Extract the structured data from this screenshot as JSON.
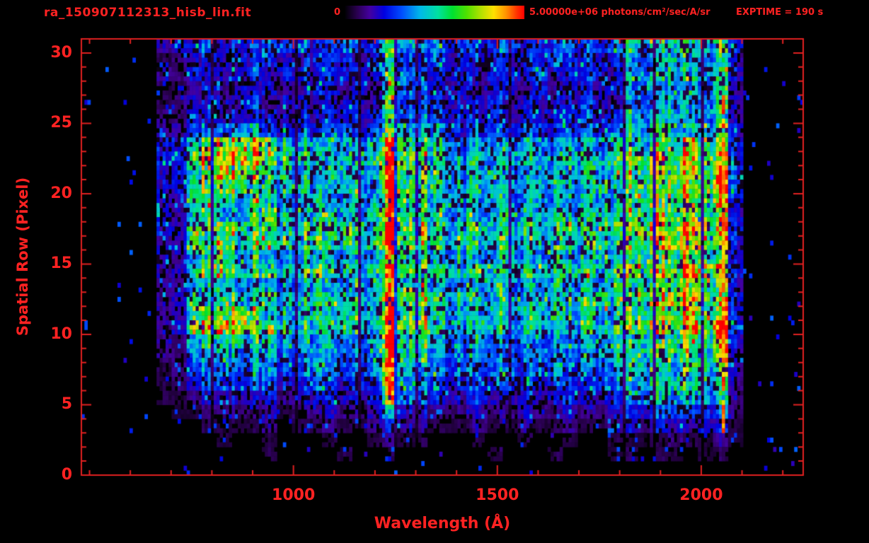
{
  "header": {
    "title": "ra_150907112313_hisb_lin.fit",
    "exptime": "EXPTIME = 190 s",
    "colorbar": {
      "min_label": "0",
      "max_label": "5.00000e+06 photons/cm²/sec/A/sr",
      "colormap": "rainbow"
    }
  },
  "colors": {
    "accent": "#ff2222",
    "axis": "#e02020",
    "background": "#000000"
  },
  "chart_data": {
    "type": "heatmap",
    "title": "ra_150907112313_hisb_lin.fit",
    "xlabel": "Wavelength (Å)",
    "ylabel": "Spatial Row (Pixel)",
    "x_range_angstrom": [
      480,
      2250
    ],
    "x_ticks": [
      1000,
      1500,
      2000
    ],
    "x_minor_tick_step": 100,
    "y_range_rows": [
      0,
      31
    ],
    "y_ticks": [
      0,
      5,
      10,
      15,
      20,
      25,
      30
    ],
    "y_minor_tick_step": 1,
    "value_min": 0,
    "value_max": 5000000,
    "value_units": "photons/cm²/sec/A/sr",
    "exposure_time_s": 190,
    "features": {
      "lyman_alpha_column_angstrom": 1216,
      "secondary_emission_column_angstrom": 1295,
      "faint_emission_column_angstrom": 1800,
      "detector_edge_line_angstrom": 2054,
      "data_extent_angstrom": [
        665,
        2100
      ]
    },
    "grid": {
      "cols": 48,
      "rows": 31,
      "x_start": 480,
      "x_step_angstrom": 36.875,
      "encoding": "one hex char (0-f) per cell = linear intensity 0..value_max; rows listed from spatial row 30 (top) down to row 0 (bottom)",
      "rows_top_to_bottom": [
        "000002345344544345448555454453445445777867840000",
        "000001234344433444347445344434454434667767730000",
        "000002244345344344438554443444534443777877840000",
        "000001123233322332327443232332423323555655720000",
        "000001233334233233338444333423333432666756730000",
        "000002244344434344449555444534444534777867830000",
        "00000235667754545545a666545545545545888878940000",
        "00000348abcba7656656d7776566566566568898a8940000",
        "00000349cddca8766767e89766766766766799a9a9a40000",
        "00000349bdcb98767767f8987677677677679aabaae50000",
        "0000034abcb998877877e898778777877787abababe50000",
        "00000339a98a97787787d8978778778778779babbae50000",
        "000003389789a8778778e8987877877877879abbaba40000",
        "000003398a9897877877d8977787787787789bbabba40000",
        "00000239898a98787878e8987877877877879abbbaa40000",
        "000003389a8987778787d8977877877877879bababa40000",
        "00000238998897787778e8987787787787789ababba40000",
        "00000237897887777787d8977778777877789aababa40000",
        "00000238788797778777e8987787778777879babaaa40000",
        "00000239abca87777777f8977777778777779aabbaa40000",
        "0000023acdcb97767776e8977677677677679ababad40000",
        "0000022789a987667667f89766766766766789a9aad40000",
        "00000226787786666666e796666666766667899a99d30000",
        "00000125666675566566f766565665665656899899930000",
        "00000124555564455455e665455455455455788988830000",
        "00000112333342334334c554334334334334667767720000",
        "000000112222312232237332223223223223445545520000",
        "000000001111201121124221112112112112323323310000",
        "000000000100100010012110001001001001111211210000",
        "000000000000100001001000000100010001101101100000",
        "000000000000000000000000000000000000000000000000"
      ]
    }
  }
}
